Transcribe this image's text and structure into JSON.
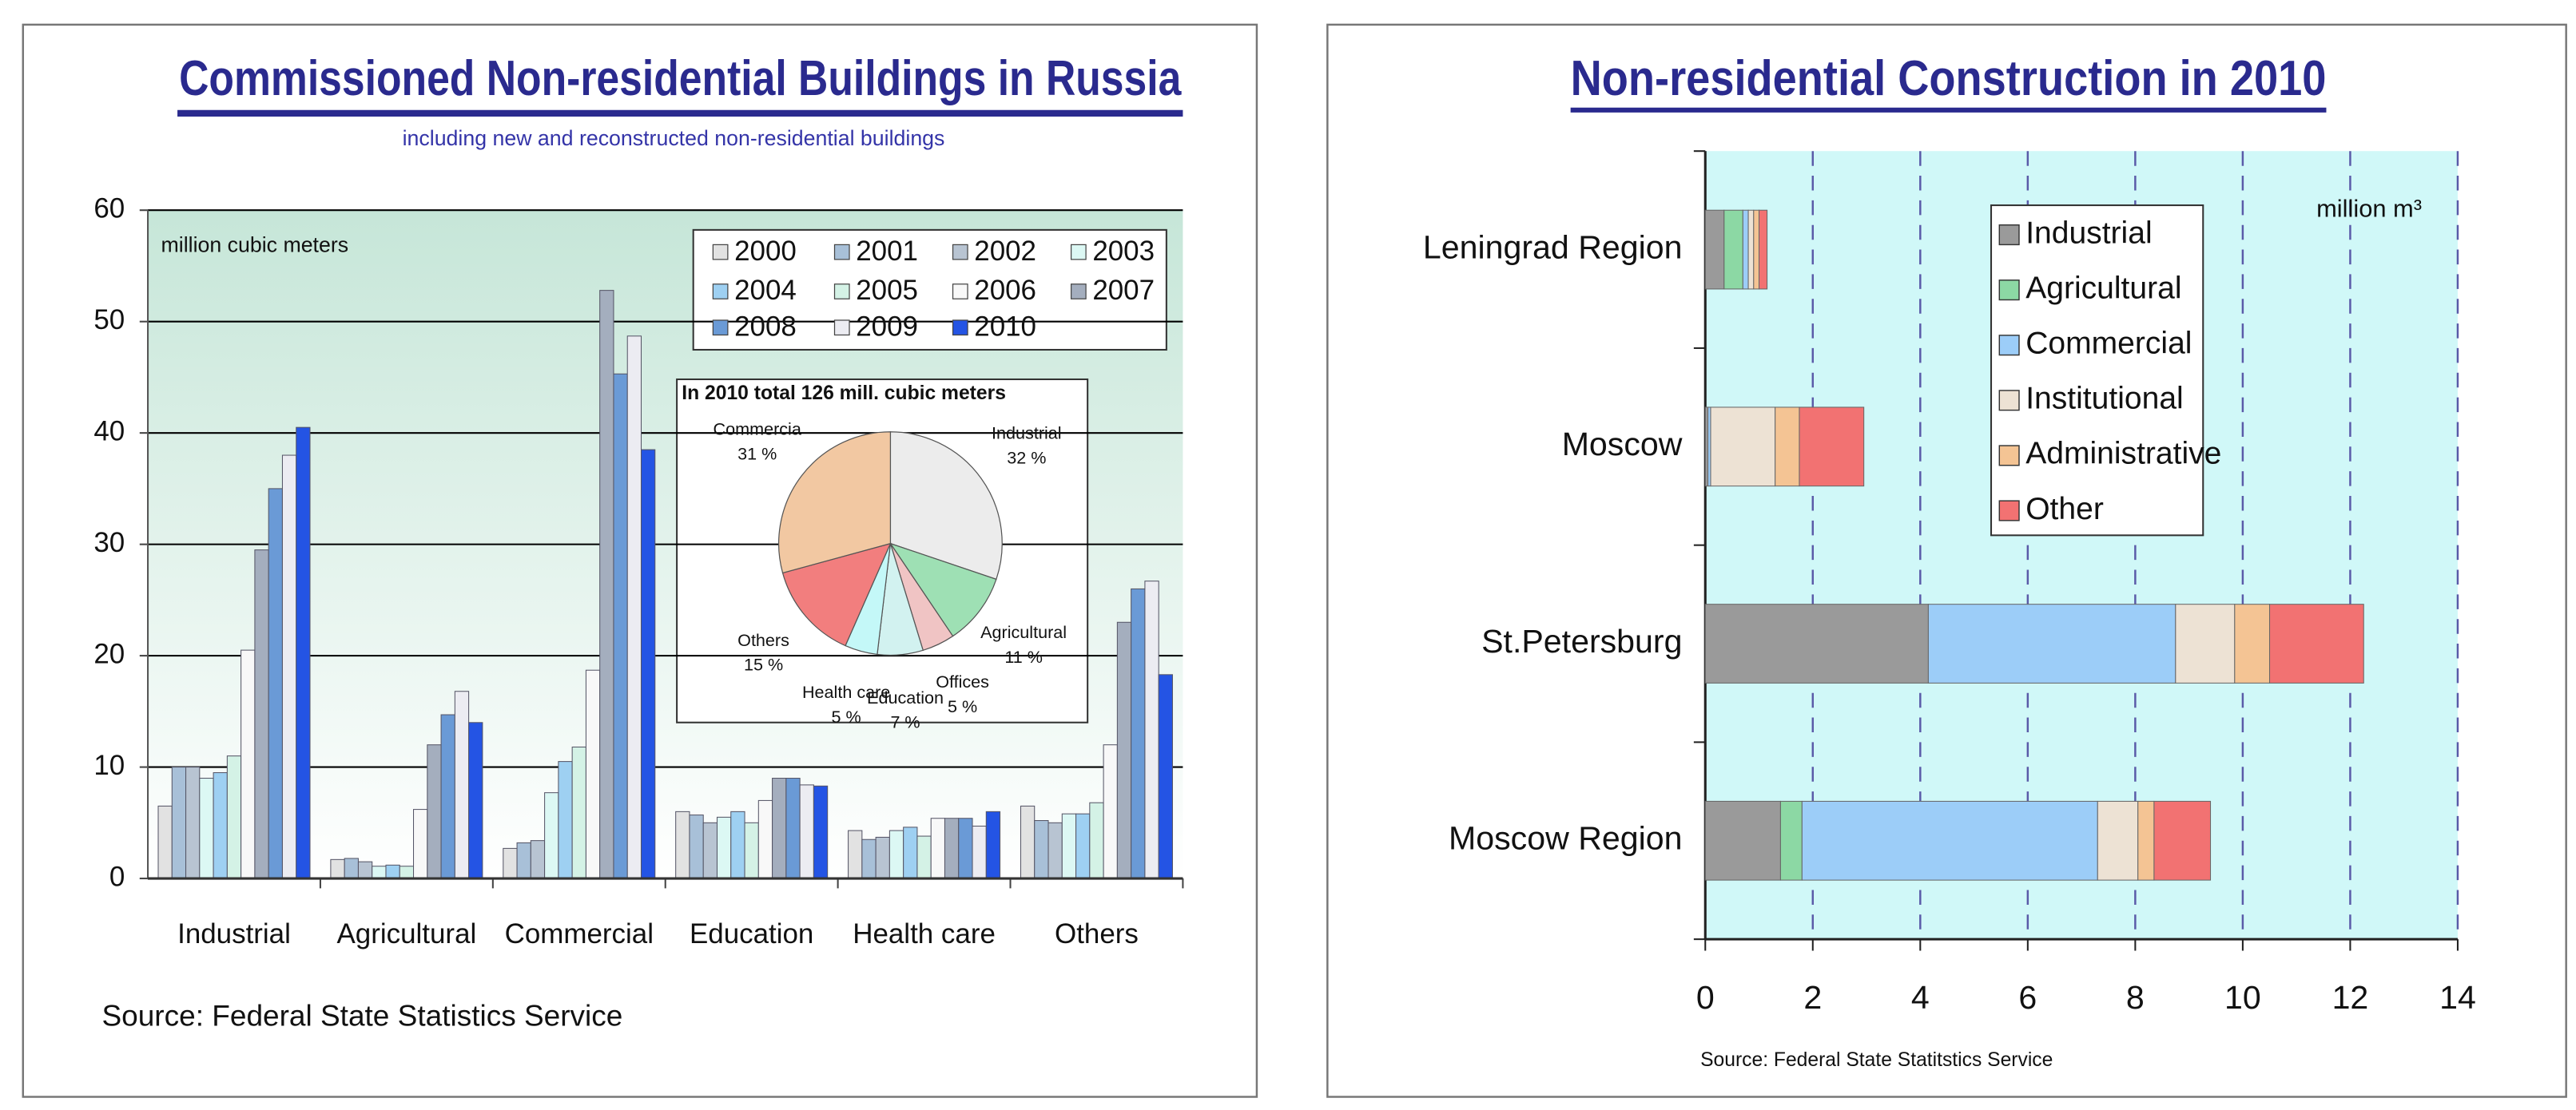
{
  "chart_data": [
    {
      "type": "bar",
      "title": "Commissioned Non-residential Buildings in Russia",
      "subtitle": "including new and reconstructed non-residential buildings",
      "annotation": "million cubic meters",
      "source": "Source: Federal State Statistics Service",
      "categories": [
        "Industrial",
        "Agricultural",
        "Commercial",
        "Education",
        "Health care",
        "Others"
      ],
      "series": [
        {
          "name": "2000",
          "color": "#e2e2e2",
          "values": [
            6.5,
            1.7,
            2.7,
            6,
            4.3,
            6.5
          ]
        },
        {
          "name": "2001",
          "color": "#a8c0d8",
          "values": [
            10,
            1.8,
            3.2,
            5.7,
            3.5,
            5.2
          ]
        },
        {
          "name": "2002",
          "color": "#b8c4d2",
          "values": [
            10,
            1.5,
            3.4,
            5,
            3.7,
            5
          ]
        },
        {
          "name": "2003",
          "color": "#dcf8f4",
          "values": [
            9,
            1.1,
            7.7,
            5.5,
            4.3,
            5.8
          ]
        },
        {
          "name": "2004",
          "color": "#9ed0f2",
          "values": [
            9.5,
            1.2,
            10.5,
            6,
            4.6,
            5.8
          ]
        },
        {
          "name": "2005",
          "color": "#d4f2e6",
          "values": [
            11,
            1.1,
            11.8,
            5,
            3.8,
            6.8
          ]
        },
        {
          "name": "2006",
          "color": "#f8f8f8",
          "values": [
            20.5,
            6.2,
            18.7,
            7,
            5.4,
            12
          ]
        },
        {
          "name": "2007",
          "color": "#a4aebe",
          "values": [
            29.5,
            12,
            52.8,
            9,
            5.4,
            23
          ]
        },
        {
          "name": "2008",
          "color": "#6a9ad6",
          "values": [
            35,
            14.7,
            45.3,
            9,
            5.4,
            26
          ]
        },
        {
          "name": "2009",
          "color": "#ececf2",
          "values": [
            38,
            16.8,
            48.7,
            8.4,
            4.7,
            26.7
          ]
        },
        {
          "name": "2010",
          "color": "#2454e4",
          "values": [
            40.5,
            14,
            38.5,
            8.3,
            6,
            18.3
          ]
        }
      ],
      "ylim": [
        0,
        60
      ],
      "yticks": [
        0,
        10,
        20,
        30,
        40,
        50,
        60
      ],
      "grid": true
    },
    {
      "type": "pie",
      "title": "In 2010 total 126 mill. cubic meters",
      "labels": [
        "Industrial",
        "Agricultural",
        "Offices",
        "Education",
        "Health care",
        "Others",
        "Commercia"
      ],
      "values": [
        32,
        11,
        5,
        7,
        5,
        15,
        31
      ],
      "value_labels": [
        "32 %",
        "11 %",
        "5 %",
        "7 %",
        "5 %",
        "15 %",
        "31 %"
      ],
      "colors": [
        "#ececec",
        "#9ee0b4",
        "#f0c4c4",
        "#d2f2f0",
        "#c4f8f8",
        "#f27e7e",
        "#f2c8a2"
      ]
    },
    {
      "type": "stacked-barh",
      "title": "Non-residential Construction in 2010",
      "annotation": "million m³",
      "source": "Source: Federal State Statitstics Service",
      "categories": [
        "Leningrad Region",
        "Moscow",
        "St.Petersburg",
        "Moscow Region"
      ],
      "series": [
        {
          "name": "Industrial",
          "color": "#9a9a9a",
          "values": [
            0.35,
            0.05,
            4.15,
            1.4
          ]
        },
        {
          "name": "Agricultural",
          "color": "#8cd8a4",
          "values": [
            0.35,
            0,
            0,
            0.4
          ]
        },
        {
          "name": "Commercial",
          "color": "#9ccdf8",
          "values": [
            0.1,
            0.05,
            4.6,
            5.5
          ]
        },
        {
          "name": "Institutional",
          "color": "#ede2d4",
          "values": [
            0.1,
            1.2,
            1.1,
            0.75
          ]
        },
        {
          "name": "Administrative",
          "color": "#f4c494",
          "values": [
            0.1,
            0.45,
            0.65,
            0.3
          ]
        },
        {
          "name": "Other",
          "color": "#f27272",
          "values": [
            0.15,
            1.2,
            1.75,
            1.05
          ]
        }
      ],
      "xlim": [
        0,
        14
      ],
      "xticks": [
        0,
        2,
        4,
        6,
        8,
        10,
        12,
        14
      ],
      "grid": true
    }
  ]
}
